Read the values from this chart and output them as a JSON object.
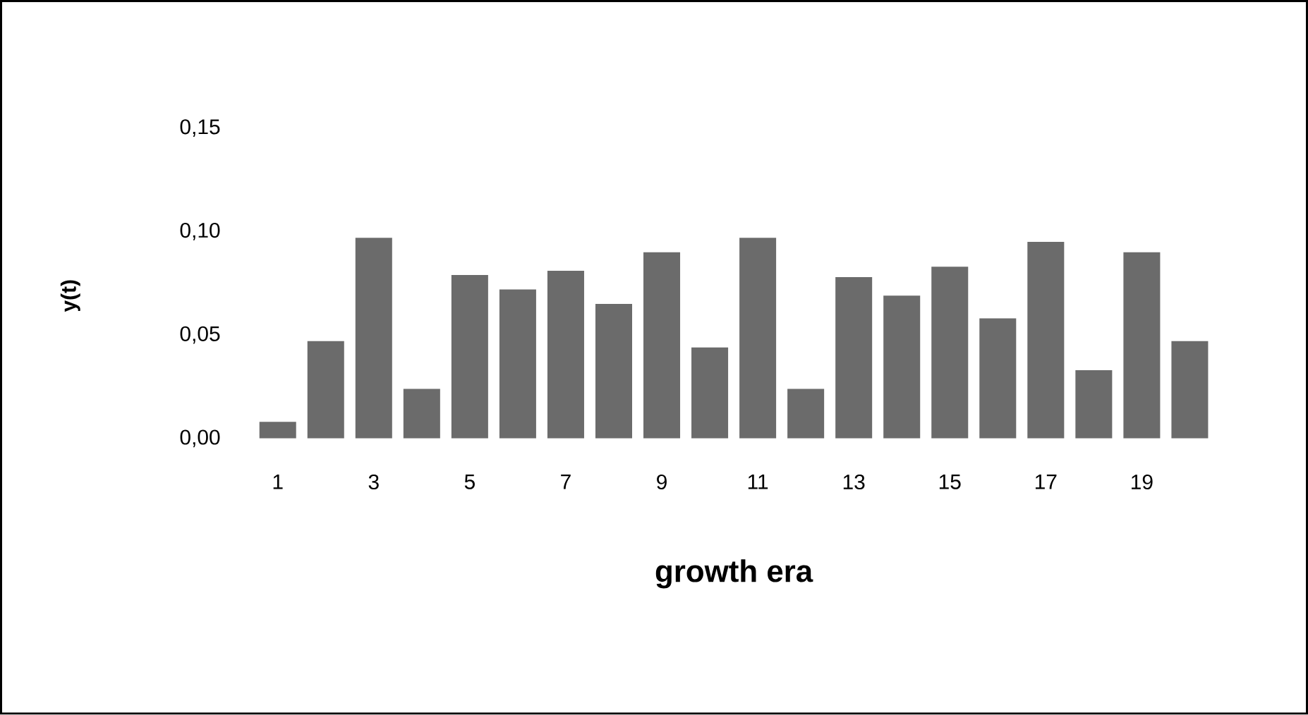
{
  "chart_data": {
    "type": "bar",
    "xlabel": "growth era",
    "ylabel": "y(t)",
    "categories": [
      "1",
      null,
      "3",
      null,
      "5",
      null,
      "7",
      null,
      "9",
      null,
      "11",
      null,
      "13",
      null,
      "15",
      null,
      "17",
      null,
      "19",
      null
    ],
    "values": [
      0.008,
      0.047,
      0.097,
      0.024,
      0.079,
      0.072,
      0.081,
      0.065,
      0.09,
      0.044,
      0.097,
      0.024,
      0.078,
      0.069,
      0.083,
      0.058,
      0.095,
      0.033,
      0.09,
      0.047
    ],
    "color": "#6b6b6b",
    "ylim": [
      0,
      0.15
    ],
    "yticks": [
      {
        "value": 0,
        "label": "0,00"
      },
      {
        "value": 0.05,
        "label": "0,05"
      },
      {
        "value": 0.1,
        "label": "0,10"
      },
      {
        "value": 0.15,
        "label": "0,15"
      }
    ],
    "grid": false
  }
}
